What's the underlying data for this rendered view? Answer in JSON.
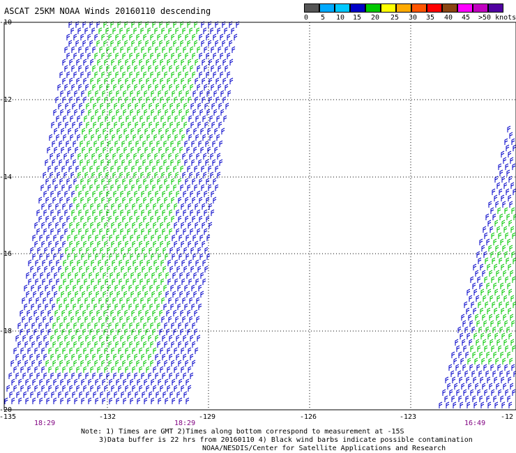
{
  "title": "ASCAT 25KM NOAA Winds 20160110 descending",
  "colorbar": {
    "colors": [
      "#555555",
      "#00aaff",
      "#00c8ff",
      "#0000c8",
      "#00c800",
      "#ffff00",
      "#ffaa00",
      "#ff5500",
      "#ff0000",
      "#8b4513",
      "#ff00ff",
      "#c000c0",
      "#5000a0"
    ],
    "labels": [
      "0",
      "5",
      "10",
      "15",
      "20",
      "25",
      "30",
      "35",
      "40",
      "45",
      ">50 knots"
    ]
  },
  "map": {
    "lat_labels": [
      "-10",
      "-12",
      "-14",
      "-16",
      "-18",
      "-20"
    ],
    "lon_labels": [
      "-135",
      "-132",
      "-129",
      "-126",
      "-123",
      "-12"
    ],
    "time_labels": [
      "18:29",
      "18:29",
      "16:49"
    ],
    "barb_colors": {
      "low": "#0000c8",
      "mid": "#00c800"
    }
  },
  "notes": {
    "line1": "Note: 1) Times are GMT 2)Times along bottom correspond to measurement at -15S",
    "line2": "3)Data buffer is 22 hrs from 20160110 4) Black wind barbs indicate possible contamination",
    "line3": "NOAA/NESDIS/Center for Satellite Applications and Research"
  }
}
